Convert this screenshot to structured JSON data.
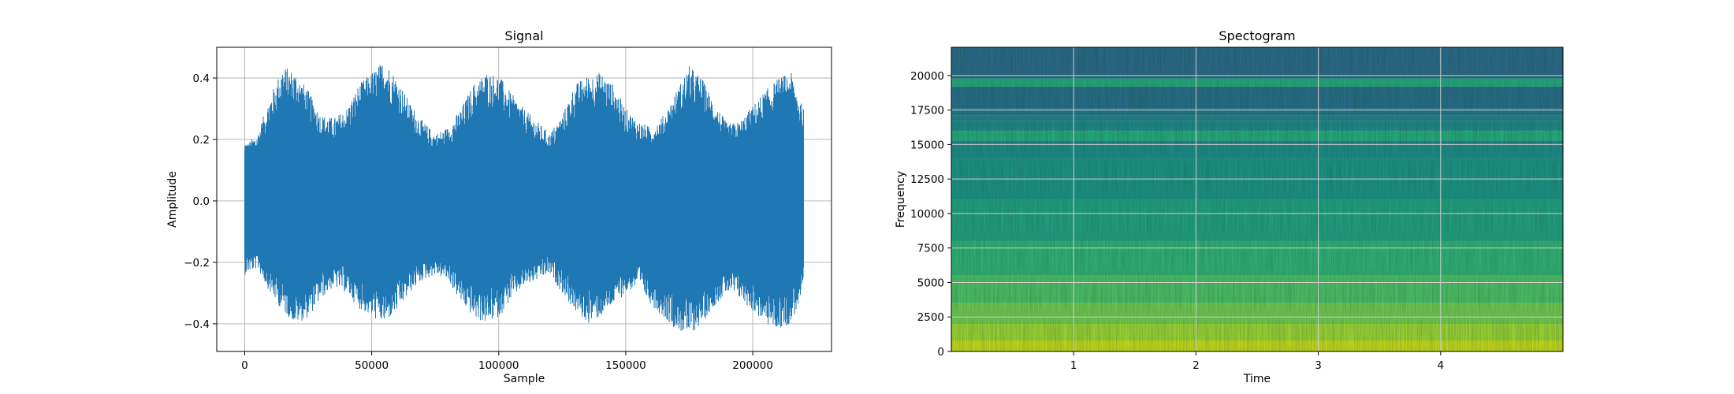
{
  "chart_data": [
    {
      "type": "line",
      "title": "Signal",
      "xlabel": "Sample",
      "ylabel": "Amplitude",
      "xlim": [
        -11000,
        231000
      ],
      "ylim": [
        -0.49,
        0.5
      ],
      "x_ticks": [
        0,
        50000,
        100000,
        150000,
        200000
      ],
      "x_tick_labels": [
        "0",
        "50000",
        "100000",
        "150000",
        "200000"
      ],
      "y_ticks": [
        -0.4,
        -0.2,
        0.0,
        0.2,
        0.4
      ],
      "y_tick_labels": [
        "−0.4",
        "−0.2",
        "0.0",
        "0.2",
        "0.4"
      ],
      "grid": true,
      "color": "#1f77b4",
      "series": [
        {
          "x": [
            0,
            5000,
            10000,
            15000,
            20000,
            25000,
            30000,
            35000,
            40000,
            45000,
            50000,
            55000,
            60000,
            65000,
            70000,
            75000,
            80000,
            85000,
            90000,
            95000,
            100000,
            105000,
            110000,
            115000,
            120000,
            125000,
            130000,
            135000,
            140000,
            145000,
            150000,
            155000,
            160000,
            165000,
            170000,
            175000,
            180000,
            185000,
            190000,
            195000,
            200000,
            205000,
            210000,
            215000,
            220000
          ],
          "upper": [
            0.18,
            0.22,
            0.34,
            0.44,
            0.42,
            0.36,
            0.28,
            0.27,
            0.3,
            0.38,
            0.42,
            0.46,
            0.4,
            0.32,
            0.26,
            0.22,
            0.24,
            0.3,
            0.38,
            0.42,
            0.41,
            0.35,
            0.3,
            0.26,
            0.22,
            0.28,
            0.38,
            0.41,
            0.42,
            0.38,
            0.3,
            0.26,
            0.24,
            0.28,
            0.36,
            0.44,
            0.4,
            0.32,
            0.25,
            0.26,
            0.31,
            0.36,
            0.4,
            0.42,
            0.3
          ],
          "lower": [
            -0.24,
            -0.22,
            -0.3,
            -0.36,
            -0.4,
            -0.38,
            -0.32,
            -0.28,
            -0.3,
            -0.35,
            -0.38,
            -0.4,
            -0.36,
            -0.3,
            -0.26,
            -0.24,
            -0.26,
            -0.33,
            -0.38,
            -0.4,
            -0.38,
            -0.32,
            -0.28,
            -0.26,
            -0.24,
            -0.3,
            -0.36,
            -0.4,
            -0.38,
            -0.34,
            -0.3,
            -0.28,
            -0.34,
            -0.38,
            -0.42,
            -0.44,
            -0.4,
            -0.34,
            -0.3,
            -0.32,
            -0.36,
            -0.4,
            -0.42,
            -0.4,
            -0.3
          ]
        }
      ]
    },
    {
      "type": "heatmap",
      "title": "Spectogram",
      "xlabel": "Time",
      "ylabel": "Frequency",
      "xlim": [
        0.0,
        5.0
      ],
      "ylim": [
        0,
        22050
      ],
      "x_ticks": [
        1,
        2,
        3,
        4
      ],
      "x_tick_labels": [
        "1",
        "2",
        "3",
        "4"
      ],
      "y_ticks": [
        0,
        2500,
        5000,
        7500,
        10000,
        12500,
        15000,
        17500,
        20000
      ],
      "y_tick_labels": [
        "0",
        "2500",
        "5000",
        "7500",
        "10000",
        "12500",
        "15000",
        "17500",
        "20000"
      ],
      "grid": true,
      "colormap": "viridis",
      "frequency_bands": [
        {
          "from": 0,
          "to": 800,
          "color": "#d4e21a"
        },
        {
          "from": 800,
          "to": 2000,
          "color": "#a8db34"
        },
        {
          "from": 2000,
          "to": 3500,
          "color": "#7ad151"
        },
        {
          "from": 3500,
          "to": 5500,
          "color": "#52c569"
        },
        {
          "from": 5500,
          "to": 8000,
          "color": "#35b779"
        },
        {
          "from": 8000,
          "to": 11000,
          "color": "#25a584"
        },
        {
          "from": 11000,
          "to": 14000,
          "color": "#1f968b"
        },
        {
          "from": 14000,
          "to": 15300,
          "color": "#218e8d"
        },
        {
          "from": 15300,
          "to": 16000,
          "color": "#2ab07f"
        },
        {
          "from": 16000,
          "to": 16700,
          "color": "#238a8d"
        },
        {
          "from": 16700,
          "to": 17100,
          "color": "#25858e"
        },
        {
          "from": 17100,
          "to": 17600,
          "color": "#2a788e"
        },
        {
          "from": 17600,
          "to": 19200,
          "color": "#2c6e8e"
        },
        {
          "from": 19200,
          "to": 19800,
          "color": "#27ad81"
        },
        {
          "from": 19800,
          "to": 22050,
          "color": "#2f6b8e"
        }
      ]
    }
  ]
}
